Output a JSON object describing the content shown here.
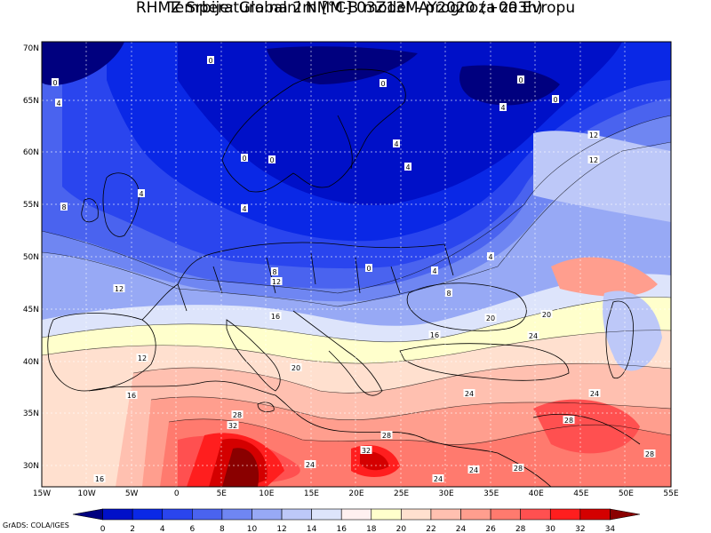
{
  "header": {
    "title_line1": "RHMZ Srbije: Globalni NMM-B model - prognoza za Evropu",
    "title_line2": "Temperatura na 2m [°C] 03Z13MAY2020 (+003h)"
  },
  "axes": {
    "lat_labels": [
      "70N",
      "65N",
      "60N",
      "55N",
      "50N",
      "45N",
      "40N",
      "35N",
      "30N"
    ],
    "lon_labels": [
      "15W",
      "10W",
      "5W",
      "0",
      "5E",
      "10E",
      "15E",
      "20E",
      "25E",
      "30E",
      "35E",
      "40E",
      "45E",
      "50E",
      "55E"
    ]
  },
  "colorbar": {
    "ticks": [
      "0",
      "2",
      "4",
      "6",
      "8",
      "10",
      "12",
      "14",
      "16",
      "18",
      "20",
      "22",
      "24",
      "26",
      "28",
      "30",
      "32",
      "34"
    ],
    "colors": [
      "#00007f",
      "#0010c8",
      "#0a28e6",
      "#2a45ee",
      "#4a63ef",
      "#6f86f2",
      "#97a9f5",
      "#bdc8f8",
      "#dde4fb",
      "#fff0f0",
      "#ffffcc",
      "#ffe0cf",
      "#ffc0b0",
      "#ff9e8e",
      "#ff7a6e",
      "#ff5050",
      "#ff1e1e",
      "#d40000",
      "#8a0000"
    ]
  },
  "contour_labels": [
    {
      "t": "0"
    },
    {
      "t": "0"
    },
    {
      "t": "4"
    },
    {
      "t": "0"
    },
    {
      "t": "0"
    },
    {
      "t": "0"
    },
    {
      "t": "4"
    },
    {
      "t": "12"
    },
    {
      "t": "12"
    },
    {
      "t": "0"
    },
    {
      "t": "0"
    },
    {
      "t": "4"
    },
    {
      "t": "4"
    },
    {
      "t": "4"
    },
    {
      "t": "8"
    },
    {
      "t": "4"
    },
    {
      "t": "4"
    },
    {
      "t": "8"
    },
    {
      "t": "12"
    },
    {
      "t": "0"
    },
    {
      "t": "4"
    },
    {
      "t": "12"
    },
    {
      "t": "16"
    },
    {
      "t": "8"
    },
    {
      "t": "20"
    },
    {
      "t": "20"
    },
    {
      "t": "16"
    },
    {
      "t": "24"
    },
    {
      "t": "12"
    },
    {
      "t": "20"
    },
    {
      "t": "16"
    },
    {
      "t": "24"
    },
    {
      "t": "24"
    },
    {
      "t": "28"
    },
    {
      "t": "32"
    },
    {
      "t": "28"
    },
    {
      "t": "28"
    },
    {
      "t": "24"
    },
    {
      "t": "32"
    },
    {
      "t": "24"
    },
    {
      "t": "24"
    },
    {
      "t": "28"
    },
    {
      "t": "28"
    },
    {
      "t": "16"
    }
  ],
  "footer": {
    "credit": "GrADS: COLA/IGES"
  }
}
